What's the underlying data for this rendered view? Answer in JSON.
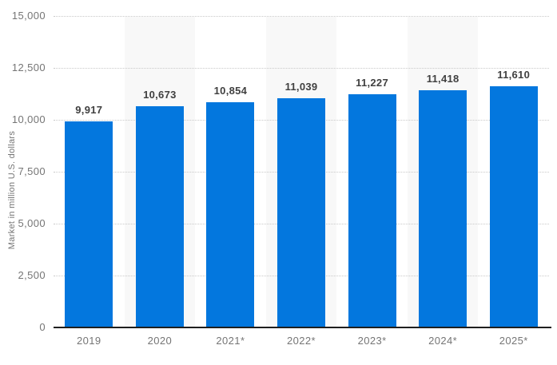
{
  "chart_data": {
    "type": "bar",
    "title": "",
    "xlabel": "",
    "ylabel": "Market in million U.S. dollars",
    "categories": [
      "2019",
      "2020",
      "2021*",
      "2022*",
      "2023*",
      "2024*",
      "2025*"
    ],
    "values": [
      9917,
      10673,
      10854,
      11039,
      11227,
      11418,
      11610
    ],
    "value_labels": [
      "9,917",
      "10,673",
      "10,854",
      "11,039",
      "11,227",
      "11,418",
      "11,610"
    ],
    "ylim": [
      0,
      15000
    ],
    "ytick_interval": 2500,
    "yticks": [
      "0",
      "2,500",
      "5,000",
      "7,500",
      "10,000",
      "12,500",
      "15,000"
    ],
    "grid": "horizontal-dotted",
    "legend": "none",
    "striped_columns": [
      1,
      3,
      5
    ],
    "colors": {
      "bar": "#0377de",
      "stripe": "#f8f8f8",
      "gridline": "#c9c9c9",
      "axis_line": "#1f1f1f",
      "tick_text": "#757575",
      "value_text": "#404040"
    }
  }
}
